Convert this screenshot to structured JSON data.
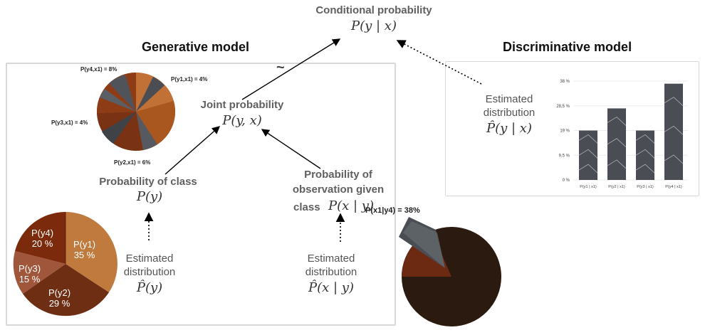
{
  "colors": {
    "wood_light": "#b9622a",
    "wood_mid": "#9b4418",
    "wood_dark": "#6b2910",
    "marble": "#4a4e54",
    "dark_pie": "#2a1a10",
    "box_border": "#d8d8d8"
  },
  "top": {
    "title": "Conditional probability",
    "formula": "P(y | x)"
  },
  "generative": {
    "title": "Generative model",
    "tilde": "~",
    "joint_title": "Joint probability",
    "joint_formula": "P(y, x)",
    "class_title": "Probability of class",
    "class_formula": "P(y)",
    "obs_title_line1": "Probability of",
    "obs_title_line2": "observation given",
    "obs_title_line3": "class",
    "obs_formula": "P(x | y)",
    "est_class_line1": "Estimated",
    "est_class_line2": "distribution",
    "est_class_formula": "P̂(y)",
    "est_obs_line1": "Estimated",
    "est_obs_line2": "distribution",
    "est_obs_formula": "P̂(x | y)"
  },
  "joint_pie_labels": {
    "y4": "P(y4,x1) = 8%",
    "y1": "P(y1,x1) = 4%",
    "y3": "P(y3,x1) = 4%",
    "y2": "P(y2,x1) = 6%"
  },
  "class_pie": {
    "y1": "P(y1)",
    "y1_pct": "35 %",
    "y2": "P(y2)",
    "y2_pct": "29 %",
    "y3": "P(y3)",
    "y3_pct": "15 %",
    "y4": "P(y4)",
    "y4_pct": "20 %"
  },
  "obs_pie": {
    "label": "P(x1|y4) = 38%"
  },
  "discriminative": {
    "title": "Discriminative model",
    "est_line1": "Estimated",
    "est_line2": "distribution",
    "est_formula": "P̂(y | x)"
  },
  "chart_data": {
    "type": "bar",
    "categories": [
      "P(y1 | x1)",
      "P(y2 | x1)",
      "P(y3 | x1)",
      "P(y4 | x1)"
    ],
    "values": [
      19,
      27.5,
      19,
      37
    ],
    "yticks": [
      "0 %",
      "9,5 %",
      "19 %",
      "28,5 %",
      "38 %"
    ],
    "ylim": [
      0,
      38
    ],
    "grid": true
  }
}
